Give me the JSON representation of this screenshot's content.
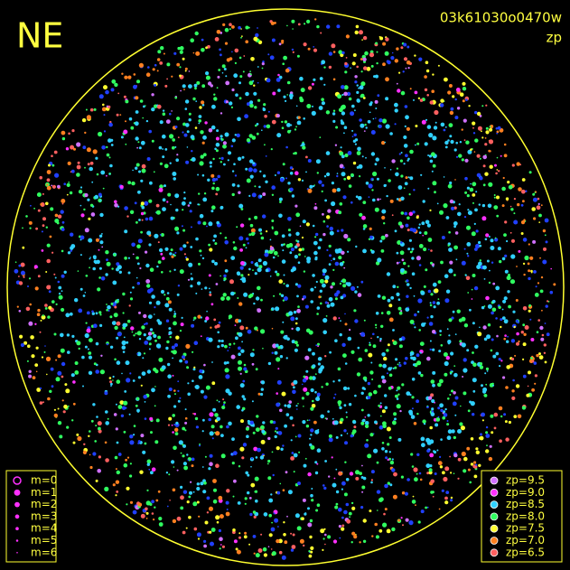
{
  "header": {
    "title": "NE",
    "frame_id": "03k61030o0470w",
    "quantity": "zp"
  },
  "magnitude_legend": {
    "items": [
      {
        "label": "m=0"
      },
      {
        "label": "m=1"
      },
      {
        "label": "m=2"
      },
      {
        "label": "m=3"
      },
      {
        "label": "m=4"
      },
      {
        "label": "m=5"
      },
      {
        "label": "m=6"
      }
    ],
    "color": "#ff30ff"
  },
  "zp_legend": {
    "items": [
      {
        "label": "zp=9.5",
        "color": "#d070ff"
      },
      {
        "label": "zp=9.0",
        "color": "#ff30ff"
      },
      {
        "label": "zp=8.5",
        "color": "#30d0ff"
      },
      {
        "label": "zp=8.0",
        "color": "#30ff60"
      },
      {
        "label": "zp=7.5",
        "color": "#ffff30"
      },
      {
        "label": "zp=7.0",
        "color": "#ff8020"
      },
      {
        "label": "zp=6.5",
        "color": "#ff6060"
      }
    ]
  }
}
